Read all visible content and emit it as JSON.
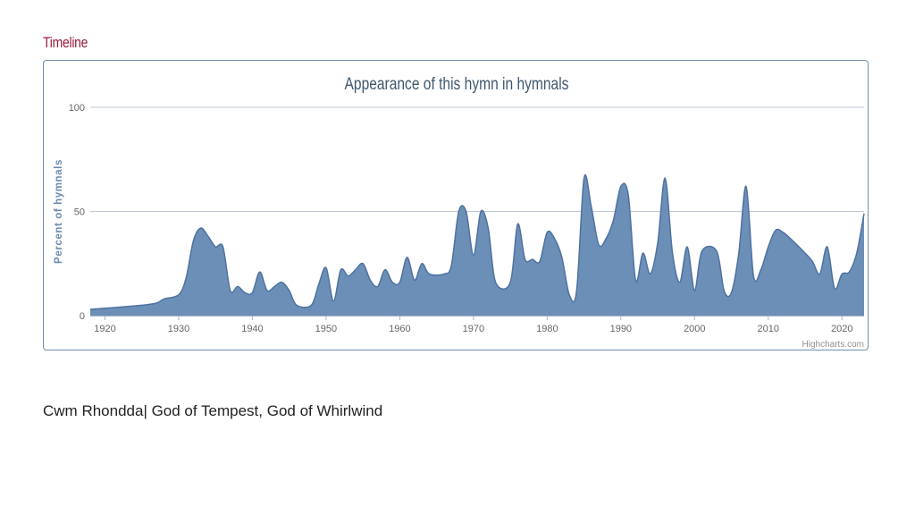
{
  "section_heading": "Timeline",
  "caption": "Cwm Rhondda| God of Tempest, God of Whirlwind",
  "credits": "Highcharts.com",
  "colors": {
    "series_fill": "#6c8fb8",
    "series_line": "#4e72a0",
    "gridline": "#c0c8d4",
    "heading": "#9b1b3a"
  },
  "chart_data": {
    "type": "area",
    "title": "Appearance of this hymn in hymnals",
    "ylabel": "Percent of hymnals",
    "xlabel": "",
    "xlim": [
      1918,
      2023
    ],
    "ylim": [
      0,
      100
    ],
    "x_ticks": [
      1920,
      1930,
      1940,
      1950,
      1960,
      1970,
      1980,
      1990,
      2000,
      2010,
      2020
    ],
    "y_ticks": [
      0,
      50,
      100
    ],
    "grid": true,
    "series": [
      {
        "x": [
          1918,
          1920,
          1925,
          1927,
          1928,
          1930,
          1931,
          1932,
          1933,
          1934,
          1935,
          1936,
          1937,
          1938,
          1939,
          1940,
          1941,
          1942,
          1943,
          1944,
          1945,
          1946,
          1948,
          1949,
          1950,
          1951,
          1952,
          1953,
          1954,
          1955,
          1956,
          1957,
          1958,
          1959,
          1960,
          1961,
          1962,
          1963,
          1964,
          1966,
          1967,
          1968,
          1969,
          1970,
          1971,
          1972,
          1973,
          1975,
          1976,
          1977,
          1978,
          1979,
          1980,
          1981,
          1982,
          1983,
          1984,
          1985,
          1986,
          1987,
          1988,
          1989,
          1990,
          1991,
          1992,
          1993,
          1994,
          1995,
          1996,
          1997,
          1998,
          1999,
          2000,
          2001,
          2003,
          2004,
          2005,
          2006,
          2007,
          2008,
          2009,
          2010,
          2011,
          2012,
          2013,
          2015,
          2016,
          2017,
          2018,
          2019,
          2020,
          2021,
          2022,
          2023
        ],
        "y": [
          3,
          3.5,
          5,
          6,
          8,
          10,
          18,
          36,
          42,
          38,
          33,
          33,
          12,
          14,
          11,
          11,
          21,
          12,
          14,
          16,
          12,
          5,
          5,
          15,
          23,
          7,
          22,
          19,
          22,
          25,
          17,
          14,
          22,
          16,
          16,
          28,
          17,
          25,
          20,
          20,
          24,
          50,
          50,
          29,
          50,
          42,
          16,
          16,
          44,
          27,
          27,
          26,
          40,
          37,
          28,
          10,
          12,
          66,
          52,
          34,
          37,
          46,
          62,
          58,
          17,
          30,
          20,
          35,
          66,
          30,
          16,
          33,
          12,
          31,
          31,
          12,
          11,
          30,
          62,
          19,
          22,
          33,
          41,
          40,
          37,
          30,
          26,
          20,
          33,
          13,
          20,
          21,
          30,
          49
        ]
      }
    ]
  }
}
